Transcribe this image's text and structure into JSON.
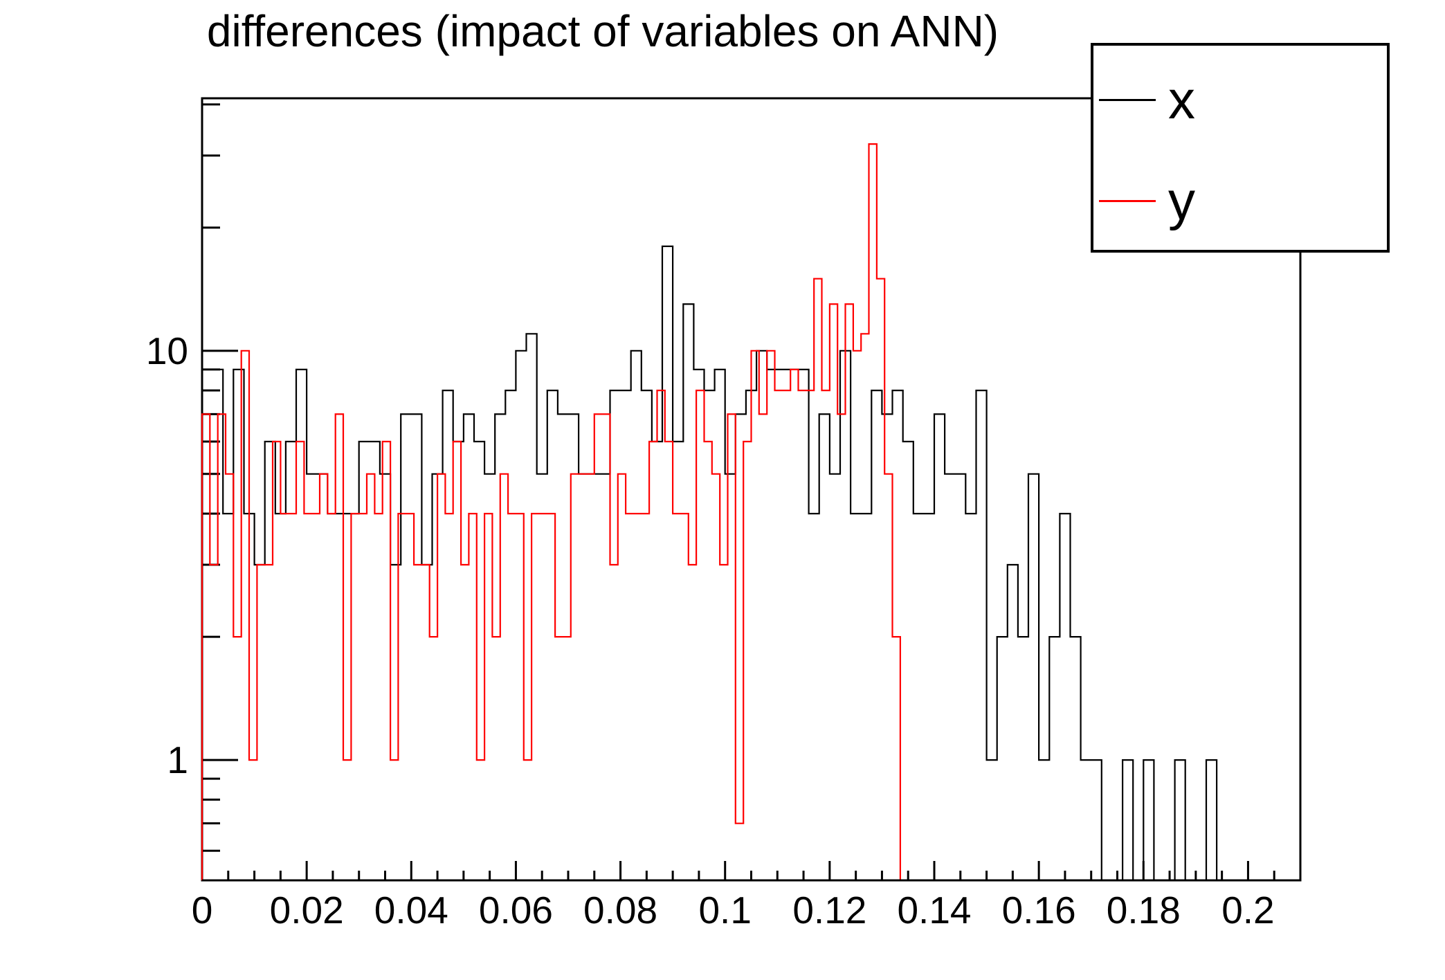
{
  "title": "differences (impact of variables on ANN)",
  "legend": {
    "entries": [
      {
        "label": "x",
        "color": "#000000"
      },
      {
        "label": "y",
        "color": "#ff0000"
      }
    ]
  },
  "chart_data": {
    "type": "line",
    "subtype": "step-histogram-outline",
    "title": "differences (impact of variables on ANN)",
    "xlabel": "",
    "ylabel": "",
    "log_y": true,
    "x_range": [
      0,
      0.21
    ],
    "y_range": [
      0.508,
      41.4
    ],
    "grid": false,
    "legend_position": "top-right",
    "x_major_ticks": [
      0,
      0.02,
      0.04,
      0.06,
      0.08,
      0.1,
      0.12,
      0.14,
      0.16,
      0.18,
      0.2
    ],
    "x_tick_labels": [
      "0",
      "0.02",
      "0.04",
      "0.06",
      "0.08",
      "0.1",
      "0.12",
      "0.14",
      "0.16",
      "0.18",
      "0.2"
    ],
    "x_minor_tick_step": 0.005,
    "y_major_ticks": [
      1,
      10
    ],
    "y_tick_labels": [
      "1",
      "10"
    ],
    "y_minor_ticks": [
      0.6,
      0.7,
      0.8,
      0.9,
      2,
      3,
      4,
      5,
      6,
      7,
      8,
      9,
      20,
      30,
      40
    ],
    "series": [
      {
        "name": "x",
        "color": "#000000",
        "bin_start": 0,
        "bin_width": 0.002,
        "values": [
          9,
          9,
          4,
          9,
          4,
          3,
          6,
          4,
          6,
          9,
          5,
          5,
          4,
          4,
          4,
          6,
          6,
          5,
          3,
          7,
          7,
          3,
          5,
          8,
          6,
          7,
          6,
          5,
          7,
          8,
          10,
          11,
          5,
          8,
          7,
          7,
          5,
          5,
          5,
          8,
          8,
          10,
          8,
          6,
          18,
          6,
          13,
          9,
          8,
          9,
          5,
          7,
          8,
          10,
          9,
          9,
          9,
          9,
          4,
          7,
          5,
          10,
          4,
          4,
          8,
          7,
          8,
          6,
          4,
          4,
          7,
          5,
          5,
          4,
          8,
          1,
          2,
          3,
          2,
          5,
          1,
          2,
          4,
          2,
          1,
          1,
          0,
          0,
          1,
          0,
          1,
          0,
          0,
          1,
          0,
          0,
          1,
          0,
          0,
          0,
          0,
          0,
          0,
          0,
          0
        ]
      },
      {
        "name": "y",
        "color": "#ff0000",
        "bin_start": 0,
        "bin_width": 0.0015,
        "values": [
          7,
          3,
          7,
          5,
          2,
          10,
          1,
          3,
          3,
          6,
          4,
          4,
          6,
          4,
          4,
          5,
          4,
          7,
          1,
          4,
          4,
          5,
          4,
          6,
          1,
          4,
          4,
          3,
          3,
          2,
          5,
          4,
          6,
          3,
          4,
          1,
          4,
          2,
          5,
          4,
          4,
          1,
          4,
          4,
          4,
          2,
          2,
          5,
          5,
          5,
          7,
          7,
          3,
          5,
          4,
          4,
          4,
          6,
          8,
          6,
          4,
          4,
          3,
          8,
          6,
          5,
          3,
          7,
          0.7,
          6,
          10,
          7,
          10,
          8,
          8,
          9,
          8,
          8,
          15,
          8,
          13,
          7,
          13,
          10,
          11,
          32,
          15,
          5,
          2,
          0,
          0,
          0,
          0,
          0,
          0,
          0,
          0,
          0,
          0,
          0,
          0,
          0,
          0,
          0,
          0,
          0,
          0,
          0,
          0,
          0,
          0,
          0,
          0,
          0,
          0,
          0,
          0,
          0,
          0,
          0,
          0,
          0,
          0,
          0,
          0,
          0,
          0,
          0,
          0,
          0,
          0,
          0,
          0,
          0,
          0,
          0,
          0,
          0,
          0,
          0
        ]
      }
    ]
  },
  "frame": {
    "axis_color": "#000000",
    "background": "#ffffff"
  }
}
